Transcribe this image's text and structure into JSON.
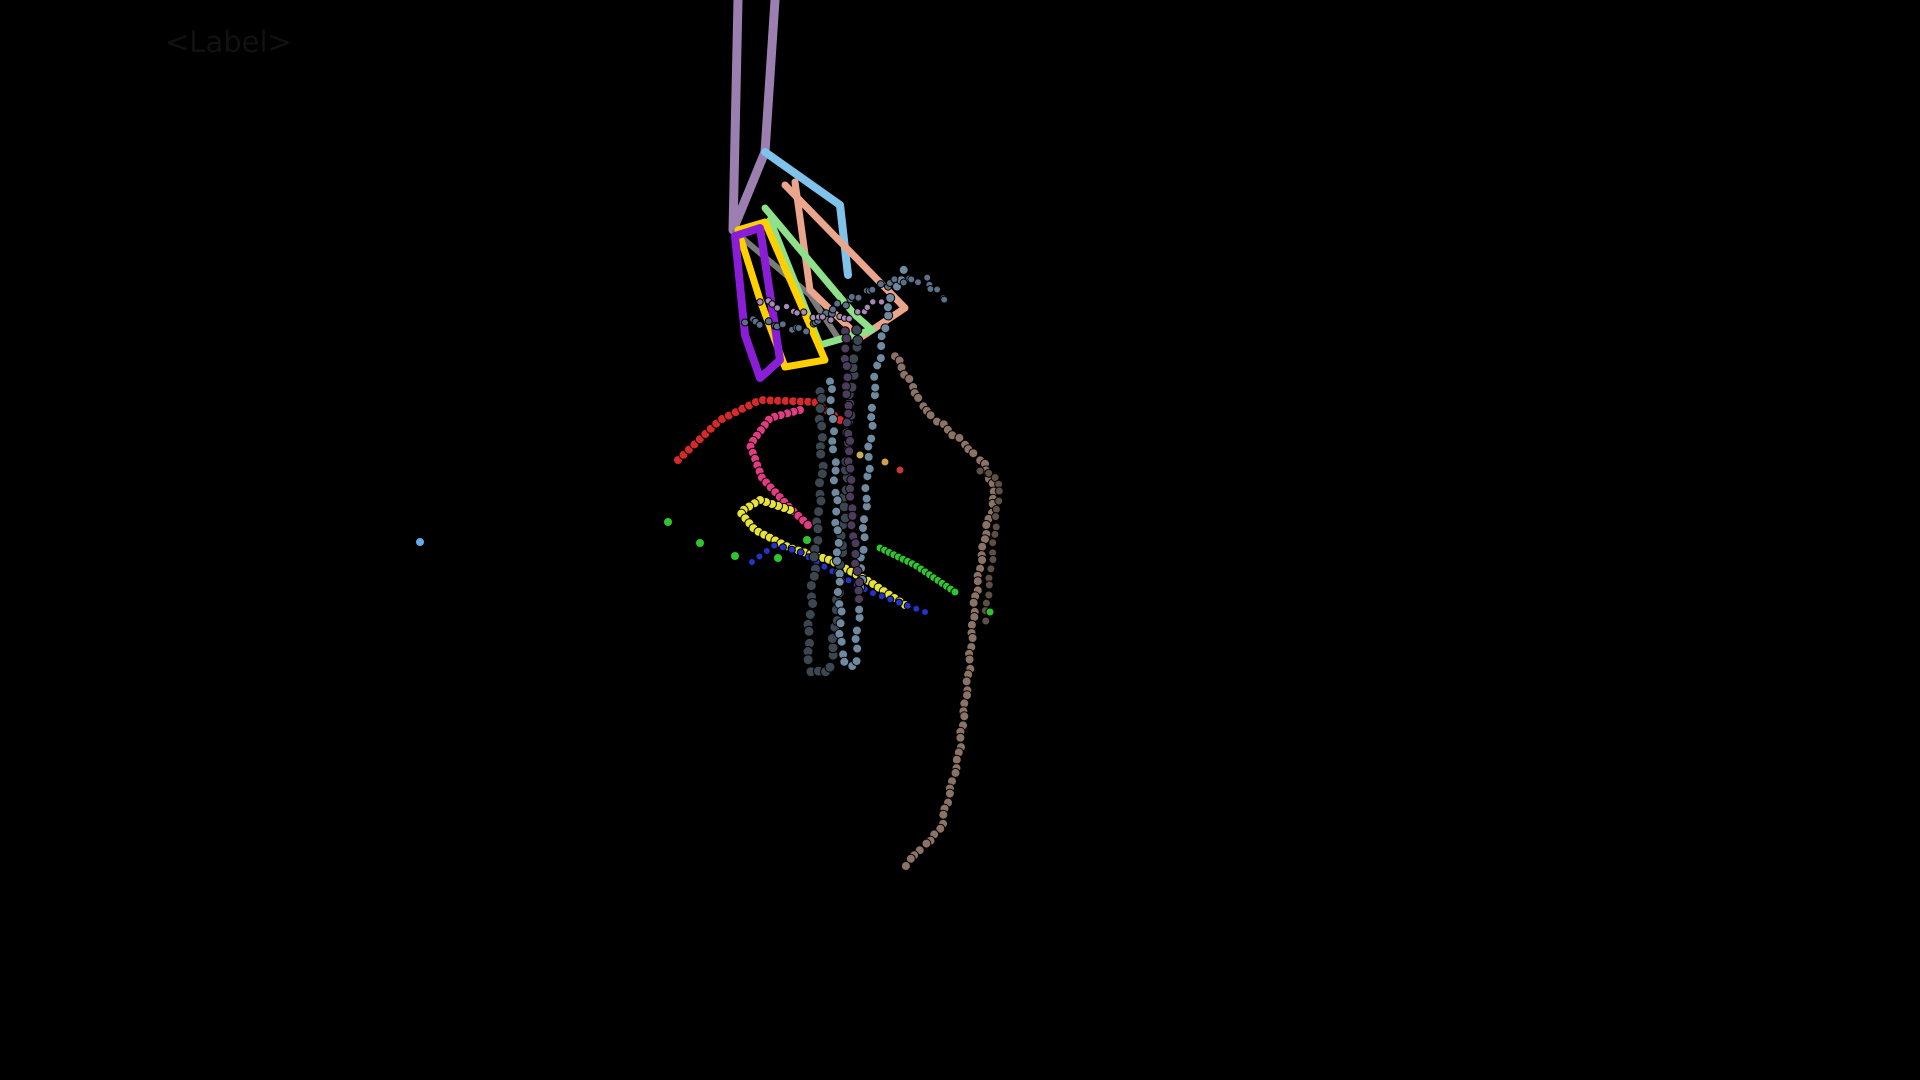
{
  "scene": {
    "label_text": "<Label>",
    "background": "#000000",
    "palette": {
      "violet_line": "#9b7fb0",
      "light_blue": "#7fc3ea",
      "salmon": "#eba58c",
      "light_green": "#8fe08a",
      "gold": "#ffd000",
      "purple": "#8a1ed6",
      "gray": "#7a7a7a",
      "red": "#d42a2a",
      "pink": "#e03c80",
      "yellow": "#e6e23a",
      "blue": "#2433c8",
      "green": "#2ec62e",
      "brown": "#8a7266",
      "dark_slate": "#3c4650",
      "steel": "#6f8aa0",
      "sky_dot": "#66aaee"
    }
  }
}
